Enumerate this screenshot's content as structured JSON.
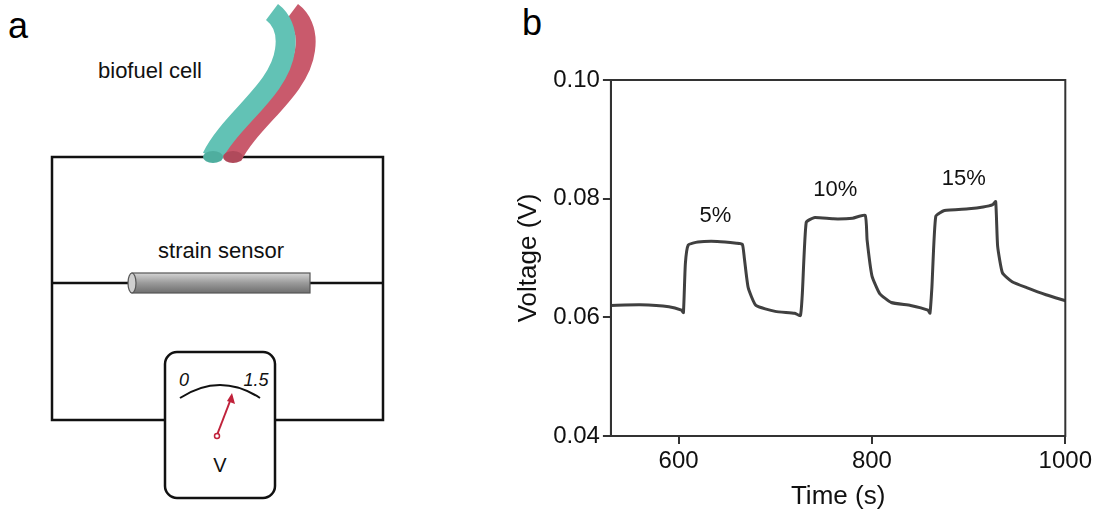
{
  "diagram": {
    "panel_label": "a",
    "biofuel_cell": {
      "label": "biofuel cell"
    },
    "strain_sensor": {
      "label": "strain sensor"
    },
    "voltmeter": {
      "scale_min": 0,
      "scale_max": 1.5,
      "unit": "V"
    }
  },
  "chart_panel_label": "b",
  "chart_data": {
    "type": "line",
    "x_label": "Time (s)",
    "y_label": "Voltage (V)",
    "x": [
      530,
      560,
      590,
      603,
      605,
      607,
      610,
      620,
      640,
      660,
      666,
      668,
      672,
      680,
      700,
      720,
      726,
      728,
      732,
      740,
      760,
      780,
      793,
      795,
      800,
      808,
      820,
      840,
      858,
      860,
      862,
      866,
      875,
      900,
      915,
      925,
      928,
      930,
      935,
      945,
      960,
      980,
      1000
    ],
    "values": [
      0.062,
      0.0621,
      0.0618,
      0.0612,
      0.0608,
      0.069,
      0.0722,
      0.0727,
      0.0728,
      0.0725,
      0.0723,
      0.07,
      0.065,
      0.062,
      0.061,
      0.0607,
      0.0603,
      0.064,
      0.076,
      0.0768,
      0.0766,
      0.0767,
      0.0772,
      0.073,
      0.067,
      0.064,
      0.0625,
      0.062,
      0.0612,
      0.0607,
      0.065,
      0.077,
      0.078,
      0.0783,
      0.0786,
      0.079,
      0.0795,
      0.072,
      0.0675,
      0.066,
      0.065,
      0.0638,
      0.0628
    ],
    "color": "#404040",
    "xlim": [
      530,
      1000
    ],
    "xticks": [
      600,
      800,
      1000
    ],
    "ylim": [
      0.04,
      0.1
    ],
    "yticks": [
      0.04,
      0.06,
      0.08,
      {
        "value": 0.1,
        "label": "0.10"
      }
    ],
    "grid": false,
    "annotations": [
      {
        "text": "5%",
        "x": 638,
        "y": 0.0745
      },
      {
        "text": "10%",
        "x": 762,
        "y": 0.079
      },
      {
        "text": "15%",
        "x": 895,
        "y": 0.0808
      }
    ]
  }
}
